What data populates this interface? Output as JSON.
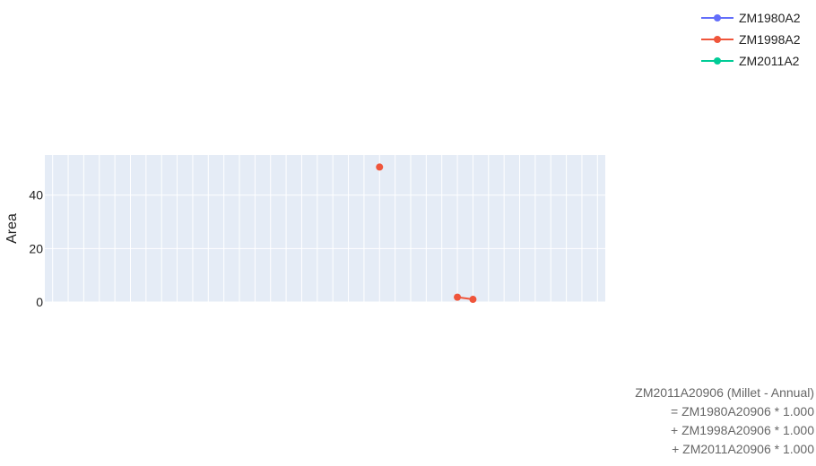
{
  "chart_data": {
    "type": "line",
    "title": "",
    "xlabel": "",
    "ylabel": "Area",
    "ylim": [
      0,
      55
    ],
    "y_ticks": [
      0,
      20,
      40
    ],
    "x_categories": 36,
    "grid": true,
    "legend_placement": "top-right",
    "series": [
      {
        "name": "ZM1980A2",
        "color": "#636efa",
        "points": []
      },
      {
        "name": "ZM1998A2",
        "color": "#ef553b",
        "points": [
          [
            21,
            50.5
          ],
          [
            26,
            1.8
          ],
          [
            27,
            1.0
          ]
        ]
      },
      {
        "name": "ZM2011A2",
        "color": "#00cc96",
        "points": []
      }
    ]
  },
  "annotation": {
    "lines": [
      "ZM2011A20906 (Millet - Annual)",
      "= ZM1980A20906 * 1.000",
      "+ ZM1998A20906 * 1.000",
      "+ ZM2011A20906 * 1.000"
    ]
  }
}
